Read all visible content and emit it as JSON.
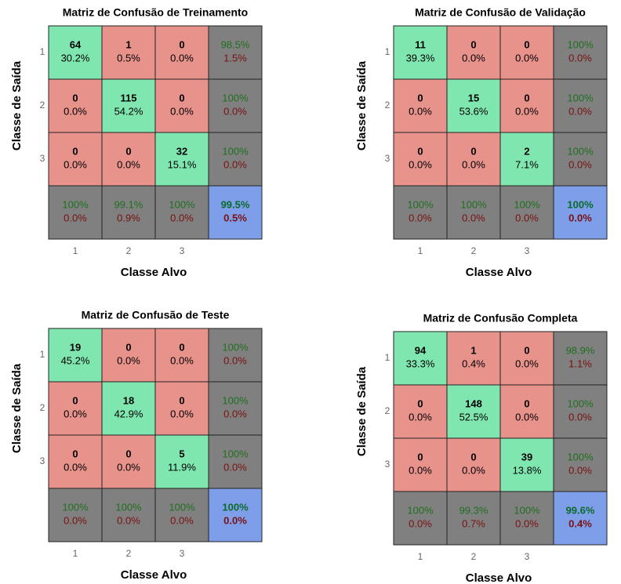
{
  "chart_data": [
    {
      "type": "confusion",
      "title": "Matriz de Confusão de Treinamento",
      "xlabel": "Classe Alvo",
      "ylabel": "Classe de Saída",
      "categories": [
        "1",
        "2",
        "3"
      ],
      "cells": [
        [
          [
            64,
            "30.2%"
          ],
          [
            1,
            "0.5%"
          ],
          [
            0,
            "0.0%"
          ],
          [
            "98.5%",
            "1.5%"
          ]
        ],
        [
          [
            0,
            "0.0%"
          ],
          [
            115,
            "54.2%"
          ],
          [
            0,
            "0.0%"
          ],
          [
            "100%",
            "0.0%"
          ]
        ],
        [
          [
            0,
            "0.0%"
          ],
          [
            0,
            "0.0%"
          ],
          [
            32,
            "15.1%"
          ],
          [
            "100%",
            "0.0%"
          ]
        ],
        [
          [
            "100%",
            "0.0%"
          ],
          [
            "99.1%",
            "0.9%"
          ],
          [
            "100%",
            "0.0%"
          ],
          [
            "99.5%",
            "0.5%"
          ]
        ]
      ]
    },
    {
      "type": "confusion",
      "title": "Matriz de Confusão de Validação",
      "xlabel": "Classe Alvo",
      "ylabel": "Classe de Saída",
      "categories": [
        "1",
        "2",
        "3"
      ],
      "cells": [
        [
          [
            11,
            "39.3%"
          ],
          [
            0,
            "0.0%"
          ],
          [
            0,
            "0.0%"
          ],
          [
            "100%",
            "0.0%"
          ]
        ],
        [
          [
            0,
            "0.0%"
          ],
          [
            15,
            "53.6%"
          ],
          [
            0,
            "0.0%"
          ],
          [
            "100%",
            "0.0%"
          ]
        ],
        [
          [
            0,
            "0.0%"
          ],
          [
            0,
            "0.0%"
          ],
          [
            2,
            "7.1%"
          ],
          [
            "100%",
            "0.0%"
          ]
        ],
        [
          [
            "100%",
            "0.0%"
          ],
          [
            "100%",
            "0.0%"
          ],
          [
            "100%",
            "0.0%"
          ],
          [
            "100%",
            "0.0%"
          ]
        ]
      ]
    },
    {
      "type": "confusion",
      "title": "Matriz de Confusão de Teste",
      "xlabel": "Classe Alvo",
      "ylabel": "Classe de Saída",
      "categories": [
        "1",
        "2",
        "3"
      ],
      "cells": [
        [
          [
            19,
            "45.2%"
          ],
          [
            0,
            "0.0%"
          ],
          [
            0,
            "0.0%"
          ],
          [
            "100%",
            "0.0%"
          ]
        ],
        [
          [
            0,
            "0.0%"
          ],
          [
            18,
            "42.9%"
          ],
          [
            0,
            "0.0%"
          ],
          [
            "100%",
            "0.0%"
          ]
        ],
        [
          [
            0,
            "0.0%"
          ],
          [
            0,
            "0.0%"
          ],
          [
            5,
            "11.9%"
          ],
          [
            "100%",
            "0.0%"
          ]
        ],
        [
          [
            "100%",
            "0.0%"
          ],
          [
            "100%",
            "0.0%"
          ],
          [
            "100%",
            "0.0%"
          ],
          [
            "100%",
            "0.0%"
          ]
        ]
      ]
    },
    {
      "type": "confusion",
      "title": "Matriz de Confusão Completa",
      "xlabel": "Classe Alvo",
      "ylabel": "Classe de Saída",
      "categories": [
        "1",
        "2",
        "3"
      ],
      "cells": [
        [
          [
            94,
            "33.3%"
          ],
          [
            1,
            "0.4%"
          ],
          [
            0,
            "0.0%"
          ],
          [
            "98.9%",
            "1.1%"
          ]
        ],
        [
          [
            0,
            "0.0%"
          ],
          [
            148,
            "52.5%"
          ],
          [
            0,
            "0.0%"
          ],
          [
            "100%",
            "0.0%"
          ]
        ],
        [
          [
            0,
            "0.0%"
          ],
          [
            0,
            "0.0%"
          ],
          [
            39,
            "13.8%"
          ],
          [
            "100%",
            "0.0%"
          ]
        ],
        [
          [
            "100%",
            "0.0%"
          ],
          [
            "99.3%",
            "0.7%"
          ],
          [
            "100%",
            "0.0%"
          ],
          [
            "99.6%",
            "0.4%"
          ]
        ]
      ]
    }
  ]
}
